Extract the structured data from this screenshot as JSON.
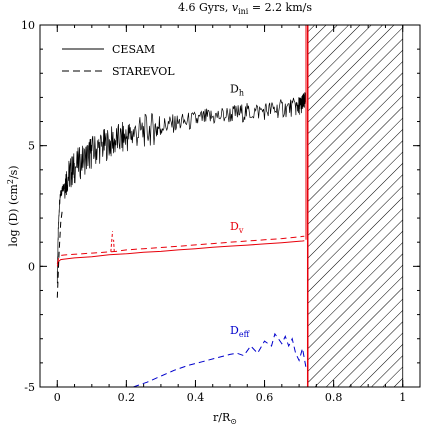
{
  "chart_data": {
    "type": "line",
    "title": "4.6 Gyrs, v_ini = 2.2 km/s",
    "title_parts": {
      "prefix": "4.6 Gyrs, ",
      "var": "v",
      "sub": "ini",
      "suffix": " = 2.2 km/s"
    },
    "xlabel": "r/R",
    "xlabel_symbol": "⊙",
    "ylabel": "log (D)  (cm",
    "ylabel_sup": "2",
    "ylabel_suffix": "/s)",
    "xlim": [
      -0.05,
      1.05
    ],
    "ylim": [
      -5,
      10
    ],
    "x_ticks": [
      0,
      0.2,
      0.4,
      0.6,
      0.8,
      1
    ],
    "x_tick_labels": [
      "0",
      "0.2",
      "0.4",
      "0.6",
      "0.8",
      "1"
    ],
    "y_ticks": [
      -5,
      0,
      5,
      10
    ],
    "y_tick_labels": [
      "-5",
      "0",
      "5",
      "10"
    ],
    "grid": false,
    "legend_position": "top-left",
    "legend": [
      {
        "name": "CESAM",
        "style": "solid"
      },
      {
        "name": "STAREVOL",
        "style": "dashed"
      }
    ],
    "convective_envelope": {
      "x_start": 0.725,
      "x_end": 1.0,
      "pattern": "hatched"
    },
    "annotations": [
      {
        "base": "D",
        "sub": "h",
        "x": 0.5,
        "y": 7.2,
        "color": "#000000"
      },
      {
        "base": "D",
        "sub": "v",
        "x": 0.5,
        "y": 1.5,
        "color": "#e8000b"
      },
      {
        "base": "D",
        "sub": "eff",
        "x": 0.5,
        "y": -2.8,
        "color": "#0000cc"
      }
    ],
    "series": [
      {
        "name": "Dh CESAM",
        "color": "#000000",
        "dash": "solid",
        "x": [
          0.0,
          0.003,
          0.006,
          0.01,
          0.015,
          0.02,
          0.03,
          0.04,
          0.05,
          0.07,
          0.09,
          0.1,
          0.12,
          0.14,
          0.16,
          0.18,
          0.2,
          0.22,
          0.25,
          0.28,
          0.3,
          0.33,
          0.36,
          0.4,
          0.43,
          0.46,
          0.5,
          0.53,
          0.56,
          0.6,
          0.63,
          0.66,
          0.69,
          0.7,
          0.705,
          0.71,
          0.715,
          0.72
        ],
        "y": [
          -0.5,
          1.5,
          2.5,
          3.0,
          3.2,
          3.4,
          3.7,
          3.9,
          4.1,
          4.35,
          4.6,
          4.75,
          4.9,
          5.05,
          5.15,
          5.25,
          5.35,
          5.5,
          5.6,
          5.7,
          5.8,
          5.9,
          5.95,
          6.05,
          6.15,
          6.2,
          6.3,
          6.35,
          6.4,
          6.45,
          6.5,
          6.55,
          6.6,
          6.65,
          6.7,
          6.75,
          6.8,
          6.9
        ]
      },
      {
        "name": "Dv CESAM",
        "color": "#e8000b",
        "dash": "solid",
        "x": [
          0.0,
          0.005,
          0.01,
          0.02,
          0.05,
          0.1,
          0.15,
          0.2,
          0.25,
          0.3,
          0.35,
          0.4,
          0.45,
          0.5,
          0.55,
          0.6,
          0.65,
          0.7,
          0.71,
          0.715
        ],
        "y": [
          0.0,
          0.22,
          0.28,
          0.3,
          0.35,
          0.4,
          0.48,
          0.52,
          0.58,
          0.62,
          0.68,
          0.73,
          0.79,
          0.84,
          0.88,
          0.93,
          0.98,
          1.04,
          1.05,
          1.06
        ]
      },
      {
        "name": "Dv STAREVOL",
        "color": "#e8000b",
        "dash": "dashed",
        "x": [
          0.0,
          0.005,
          0.01,
          0.02,
          0.05,
          0.1,
          0.15,
          0.17,
          0.2,
          0.25,
          0.3,
          0.35,
          0.4,
          0.45,
          0.5,
          0.55,
          0.6,
          0.65,
          0.7,
          0.71,
          0.715
        ],
        "y": [
          0.1,
          0.4,
          0.45,
          0.47,
          0.5,
          0.55,
          0.6,
          0.62,
          0.68,
          0.73,
          0.78,
          0.83,
          0.89,
          0.94,
          1.0,
          1.05,
          1.1,
          1.15,
          1.22,
          1.24,
          1.25
        ]
      },
      {
        "name": "Deff STAREVOL",
        "color": "#0000cc",
        "dash": "dashed",
        "x": [
          0.22,
          0.26,
          0.3,
          0.34,
          0.38,
          0.42,
          0.46,
          0.5,
          0.52,
          0.54,
          0.56,
          0.58,
          0.6,
          0.62,
          0.63,
          0.64,
          0.65,
          0.66,
          0.67,
          0.68,
          0.69,
          0.7,
          0.71,
          0.72
        ],
        "y": [
          -5.0,
          -4.8,
          -4.55,
          -4.3,
          -4.1,
          -3.95,
          -3.8,
          -3.65,
          -3.6,
          -3.7,
          -3.3,
          -3.6,
          -3.1,
          -3.3,
          -2.8,
          -3.0,
          -3.2,
          -2.9,
          -3.3,
          -3.0,
          -3.6,
          -3.9,
          -3.4,
          -4.2
        ]
      },
      {
        "name": "Dh STAREVOL",
        "color": "#000000",
        "dash": "dashed",
        "x": [
          0.0,
          0.005,
          0.01,
          0.015
        ],
        "y": [
          -1.3,
          0.5,
          1.8,
          2.4
        ]
      }
    ]
  }
}
